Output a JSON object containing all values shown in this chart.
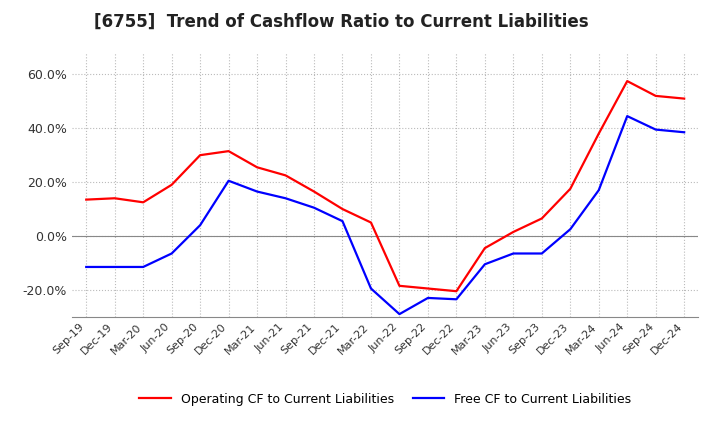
{
  "title": "[6755]  Trend of Cashflow Ratio to Current Liabilities",
  "x_labels": [
    "Sep-19",
    "Dec-19",
    "Mar-20",
    "Jun-20",
    "Sep-20",
    "Dec-20",
    "Mar-21",
    "Jun-21",
    "Sep-21",
    "Dec-21",
    "Mar-22",
    "Jun-22",
    "Sep-22",
    "Dec-22",
    "Mar-23",
    "Jun-23",
    "Sep-23",
    "Dec-23",
    "Mar-24",
    "Jun-24",
    "Sep-24",
    "Dec-24"
  ],
  "operating_cf": [
    0.135,
    0.14,
    0.125,
    0.19,
    0.3,
    0.315,
    0.255,
    0.225,
    0.165,
    0.1,
    0.05,
    -0.185,
    -0.195,
    -0.205,
    -0.045,
    0.015,
    0.065,
    0.175,
    0.38,
    0.575,
    0.52,
    0.51
  ],
  "free_cf": [
    -0.115,
    -0.115,
    -0.115,
    -0.065,
    0.04,
    0.205,
    0.165,
    0.14,
    0.105,
    0.055,
    -0.195,
    -0.29,
    -0.23,
    -0.235,
    -0.105,
    -0.065,
    -0.065,
    0.025,
    0.17,
    0.445,
    0.395,
    0.385
  ],
  "ylim": [
    -0.3,
    0.68
  ],
  "yticks": [
    -0.2,
    0.0,
    0.2,
    0.4,
    0.6
  ],
  "yticklabels": [
    "-20.0%",
    "0.0%",
    "20.0%",
    "40.0%",
    "60.0%"
  ],
  "operating_color": "#ff0000",
  "free_color": "#0000ff",
  "grid_color": "#bbbbbb",
  "background_color": "#ffffff",
  "title_fontsize": 12,
  "legend_labels": [
    "Operating CF to Current Liabilities",
    "Free CF to Current Liabilities"
  ]
}
